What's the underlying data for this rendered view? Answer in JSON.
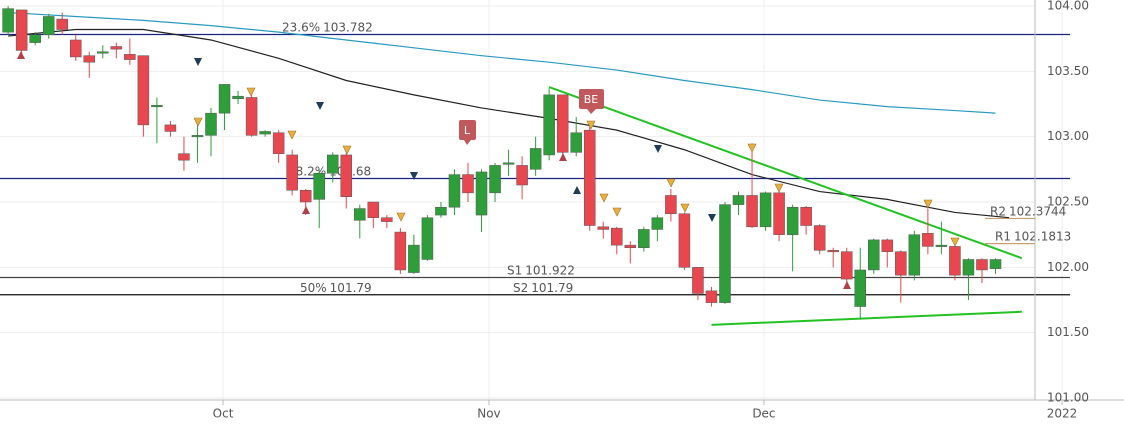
{
  "chart_data": {
    "type": "candlestick",
    "x": [
      0,
      1,
      2,
      3,
      4,
      5,
      6,
      7,
      8,
      9,
      10,
      11,
      12,
      13,
      14,
      15,
      16,
      17,
      18,
      19,
      20,
      21,
      22,
      23,
      24,
      25,
      26,
      27,
      28,
      29,
      30,
      31,
      32,
      33,
      34,
      35,
      36,
      37,
      38,
      39,
      40,
      41,
      42,
      43,
      44,
      45,
      46,
      47,
      48,
      49,
      50,
      51,
      52,
      53,
      54,
      55,
      56,
      57,
      58,
      59,
      60,
      61,
      62,
      63,
      64,
      65,
      66,
      67,
      68,
      69,
      70,
      71,
      72,
      73
    ],
    "open": [
      103.8,
      103.97,
      103.72,
      103.78,
      103.9,
      103.74,
      103.62,
      103.64,
      103.69,
      103.63,
      103.62,
      103.23,
      103.09,
      102.87,
      103.0,
      103.01,
      103.18,
      103.29,
      103.3,
      103.02,
      103.03,
      102.86,
      102.59,
      102.52,
      102.72,
      102.86,
      102.36,
      102.5,
      102.38,
      102.27,
      101.96,
      102.06,
      102.4,
      102.46,
      102.71,
      102.4,
      102.57,
      102.79,
      102.78,
      102.75,
      102.86,
      103.32,
      102.88,
      103.05,
      102.31,
      102.3,
      102.17,
      102.15,
      102.29,
      102.55,
      102.41,
      102.0,
      101.82,
      101.73,
      102.48,
      102.55,
      102.31,
      102.57,
      102.25,
      102.46,
      102.32,
      102.13,
      102.12,
      101.7,
      101.98,
      102.21,
      102.12,
      101.94,
      102.26,
      102.16,
      102.16,
      101.94,
      102.06,
      101.99
    ],
    "high": [
      104.0,
      103.97,
      103.8,
      103.94,
      103.95,
      103.78,
      103.65,
      103.7,
      103.72,
      103.75,
      103.62,
      103.3,
      103.12,
      103.0,
      103.1,
      103.22,
      103.4,
      103.35,
      103.32,
      103.05,
      103.05,
      102.9,
      102.6,
      102.75,
      102.88,
      102.88,
      102.48,
      102.5,
      102.4,
      102.3,
      102.25,
      102.4,
      102.5,
      102.75,
      102.8,
      102.75,
      102.8,
      102.9,
      102.85,
      103.0,
      103.37,
      103.32,
      103.15,
      103.1,
      102.35,
      102.31,
      102.2,
      102.31,
      102.4,
      102.6,
      102.42,
      102.0,
      101.85,
      102.5,
      102.58,
      102.95,
      102.58,
      102.6,
      102.48,
      102.47,
      102.33,
      102.15,
      102.15,
      102.15,
      102.22,
      102.22,
      102.13,
      102.28,
      102.45,
      102.35,
      102.18,
      102.07,
      102.07,
      102.07
    ],
    "low": [
      103.78,
      103.6,
      103.7,
      103.75,
      103.78,
      103.58,
      103.45,
      103.6,
      103.6,
      103.55,
      103.0,
      102.95,
      103.0,
      102.74,
      102.8,
      102.85,
      103.05,
      103.25,
      103.0,
      103.0,
      102.8,
      102.55,
      102.4,
      102.3,
      102.65,
      102.45,
      102.22,
      102.3,
      102.3,
      101.95,
      101.95,
      102.05,
      102.38,
      102.4,
      102.5,
      102.27,
      102.5,
      102.7,
      102.52,
      102.7,
      102.82,
      102.85,
      102.85,
      102.28,
      102.22,
      102.1,
      102.03,
      102.12,
      102.2,
      102.35,
      101.98,
      101.75,
      101.7,
      101.72,
      102.4,
      102.3,
      102.28,
      102.2,
      101.97,
      102.25,
      102.1,
      102.0,
      101.88,
      101.6,
      101.95,
      102.0,
      101.73,
      101.9,
      102.1,
      102.1,
      101.9,
      101.75,
      101.88,
      101.95
    ],
    "close": [
      103.98,
      103.66,
      103.78,
      103.92,
      103.82,
      103.61,
      103.57,
      103.65,
      103.67,
      103.59,
      103.09,
      103.24,
      103.04,
      102.82,
      103.01,
      103.18,
      103.4,
      103.31,
      103.01,
      103.04,
      102.87,
      102.59,
      102.5,
      102.72,
      102.86,
      102.54,
      102.45,
      102.38,
      102.35,
      101.98,
      102.17,
      102.38,
      102.46,
      102.71,
      102.57,
      102.73,
      102.78,
      102.8,
      102.63,
      102.91,
      103.32,
      102.88,
      103.03,
      102.32,
      102.29,
      102.17,
      102.15,
      102.29,
      102.38,
      102.41,
      102.0,
      101.8,
      101.73,
      102.48,
      102.55,
      102.31,
      102.57,
      102.25,
      102.46,
      102.32,
      102.13,
      102.12,
      101.91,
      101.98,
      102.21,
      102.12,
      101.94,
      102.25,
      102.16,
      102.17,
      101.94,
      102.06,
      101.98,
      102.06
    ],
    "up_color": "#2e9e3a",
    "down_color": "#e8474f",
    "lines": [
      {
        "color": "#222222",
        "x": [
          0,
          5,
          10,
          15,
          20,
          25,
          30,
          35,
          40,
          45,
          50,
          55,
          60,
          65,
          70,
          74
        ],
        "values": [
          103.77,
          103.82,
          103.82,
          103.74,
          103.6,
          103.43,
          103.32,
          103.22,
          103.14,
          103.05,
          102.9,
          102.71,
          102.58,
          102.52,
          102.42,
          102.38
        ]
      },
      {
        "color": "#2a9ac0",
        "x": [
          0,
          5,
          10,
          15,
          20,
          25,
          30,
          35,
          40,
          45,
          50,
          55,
          60,
          65,
          70,
          73
        ],
        "values": [
          103.95,
          103.92,
          103.89,
          103.85,
          103.8,
          103.74,
          103.68,
          103.62,
          103.57,
          103.51,
          103.43,
          103.36,
          103.28,
          103.23,
          103.2,
          103.18
        ]
      },
      {
        "color": "#22c222",
        "x": [
          40,
          74.95
        ],
        "values": [
          103.38,
          102.07
        ]
      },
      {
        "color": "#22c222",
        "x": [
          52,
          74.95
        ],
        "values": [
          101.56,
          101.66
        ]
      }
    ],
    "levels": [
      {
        "name": "23.6%",
        "value": 103.782,
        "color": "#1a237e"
      },
      {
        "name": "38.2%",
        "value": 102.68,
        "color": "#1a237e"
      },
      {
        "name": "50%",
        "value": 101.79,
        "color": "#111111"
      },
      {
        "name": "S1",
        "value": 101.922,
        "color": "#444444"
      },
      {
        "name": "S2",
        "value": 101.79,
        "color": "#444444"
      },
      {
        "name": "R2",
        "value": 102.3744,
        "color": "#c8a070"
      },
      {
        "name": "R1",
        "value": 102.1813,
        "color": "#c8a070"
      }
    ],
    "annotations": [
      "L",
      "BE"
    ],
    "xlim": [
      -0.6,
      82.5
    ],
    "xticks": [
      {
        "value": 15.89,
        "label": "Oct"
      },
      {
        "value": 35.55,
        "label": "Nov"
      },
      {
        "value": 55.88,
        "label": "Dec"
      },
      {
        "value": 77.92,
        "label": "2022"
      }
    ],
    "ylim": [
      101,
      104.046
    ],
    "yticks": [
      {
        "value": 101,
        "label": "101.00"
      },
      {
        "value": 101.5,
        "label": "101.50"
      },
      {
        "value": 102,
        "label": "102.00"
      },
      {
        "value": 102.5,
        "label": "102.50"
      },
      {
        "value": 103,
        "label": "103.00"
      },
      {
        "value": 103.5,
        "label": "103.50"
      },
      {
        "value": 104,
        "label": "104.00"
      }
    ],
    "grid": true
  }
}
